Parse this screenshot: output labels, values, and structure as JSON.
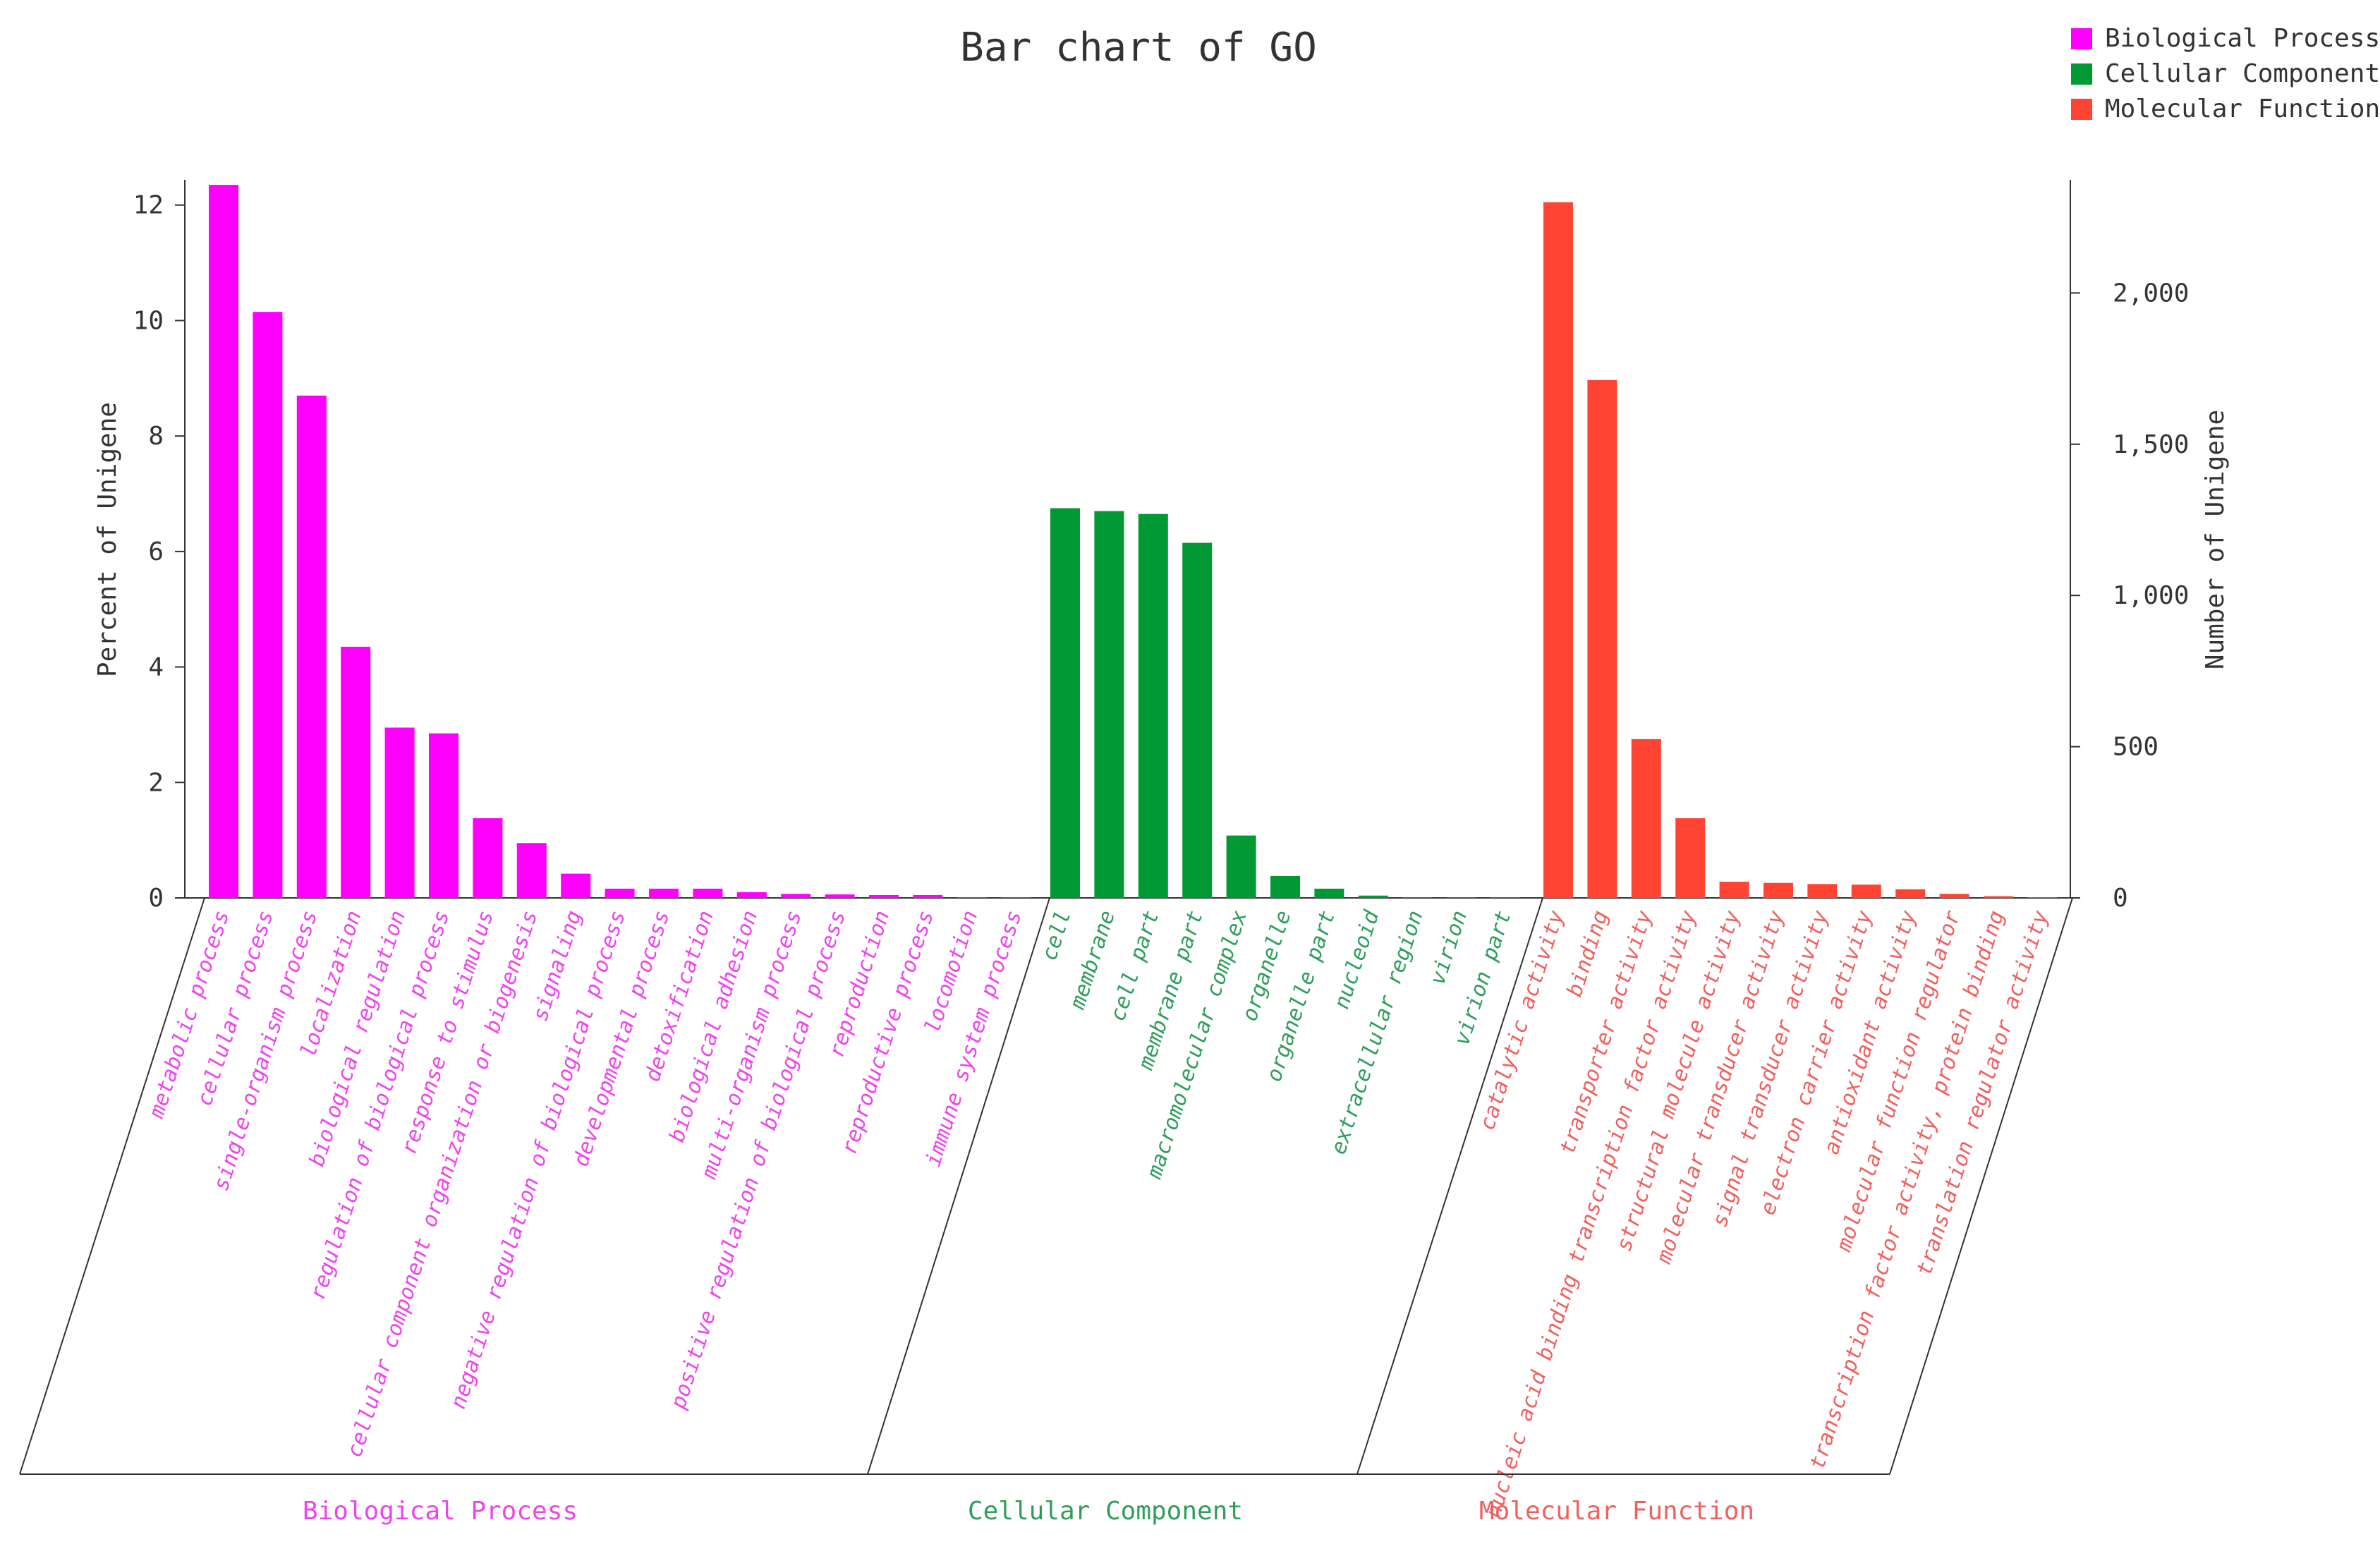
{
  "chart_data": {
    "type": "bar",
    "title": "Bar chart of GO",
    "ylabel_left": "Percent of Unigene",
    "ylabel_right": "Number of Unigene",
    "ylim_left": [
      0,
      12.4
    ],
    "ylim_right": [
      0,
      2367
    ],
    "left_ticks": [
      0,
      2,
      4,
      6,
      8,
      10,
      12
    ],
    "right_ticks": [
      {
        "value": 0,
        "label": "0"
      },
      {
        "value": 500,
        "label": "500"
      },
      {
        "value": 1000,
        "label": "1,000"
      },
      {
        "value": 1500,
        "label": "1,500"
      },
      {
        "value": 2000,
        "label": "2,000"
      }
    ],
    "legend_position": "top-right",
    "groups": [
      {
        "name": "Biological Process",
        "color": "#ff00ff",
        "label_color": "#ee44ee",
        "categories": [
          "metabolic process",
          "cellular process",
          "single-organism process",
          "localization",
          "biological regulation",
          "regulation of biological process",
          "response to stimulus",
          "cellular component organization or biogenesis",
          "signaling",
          "negative regulation of biological process",
          "developmental process",
          "detoxification",
          "biological adhesion",
          "multi-organism process",
          "positive regulation of biological process",
          "reproduction",
          "reproductive process",
          "locomotion",
          "immune system process"
        ],
        "values": [
          12.35,
          10.15,
          8.7,
          4.35,
          2.95,
          2.85,
          1.38,
          0.95,
          0.42,
          0.16,
          0.16,
          0.16,
          0.1,
          0.07,
          0.06,
          0.05,
          0.05,
          0.01,
          0.01
        ]
      },
      {
        "name": "Cellular Component",
        "color": "#009933",
        "label_color": "#2e9e5b",
        "categories": [
          "cell",
          "membrane",
          "cell part",
          "membrane part",
          "macromolecular complex",
          "organelle",
          "organelle part",
          "nucleoid",
          "extracellular region",
          "virion",
          "virion part"
        ],
        "values": [
          6.75,
          6.7,
          6.65,
          6.15,
          1.08,
          0.38,
          0.16,
          0.04,
          0.01,
          0.01,
          0.01
        ]
      },
      {
        "name": "Molecular Function",
        "color": "#ff4433",
        "label_color": "#f06060",
        "categories": [
          "catalytic activity",
          "binding",
          "transporter activity",
          "nucleic acid binding transcription factor activity",
          "structural molecule activity",
          "molecular transducer activity",
          "signal transducer activity",
          "electron carrier activity",
          "antioxidant activity",
          "molecular function regulator",
          "transcription factor activity, protein binding",
          "translation regulator activity"
        ],
        "values": [
          12.05,
          8.97,
          2.75,
          1.38,
          0.28,
          0.26,
          0.24,
          0.23,
          0.15,
          0.07,
          0.03,
          0.01
        ]
      }
    ]
  }
}
